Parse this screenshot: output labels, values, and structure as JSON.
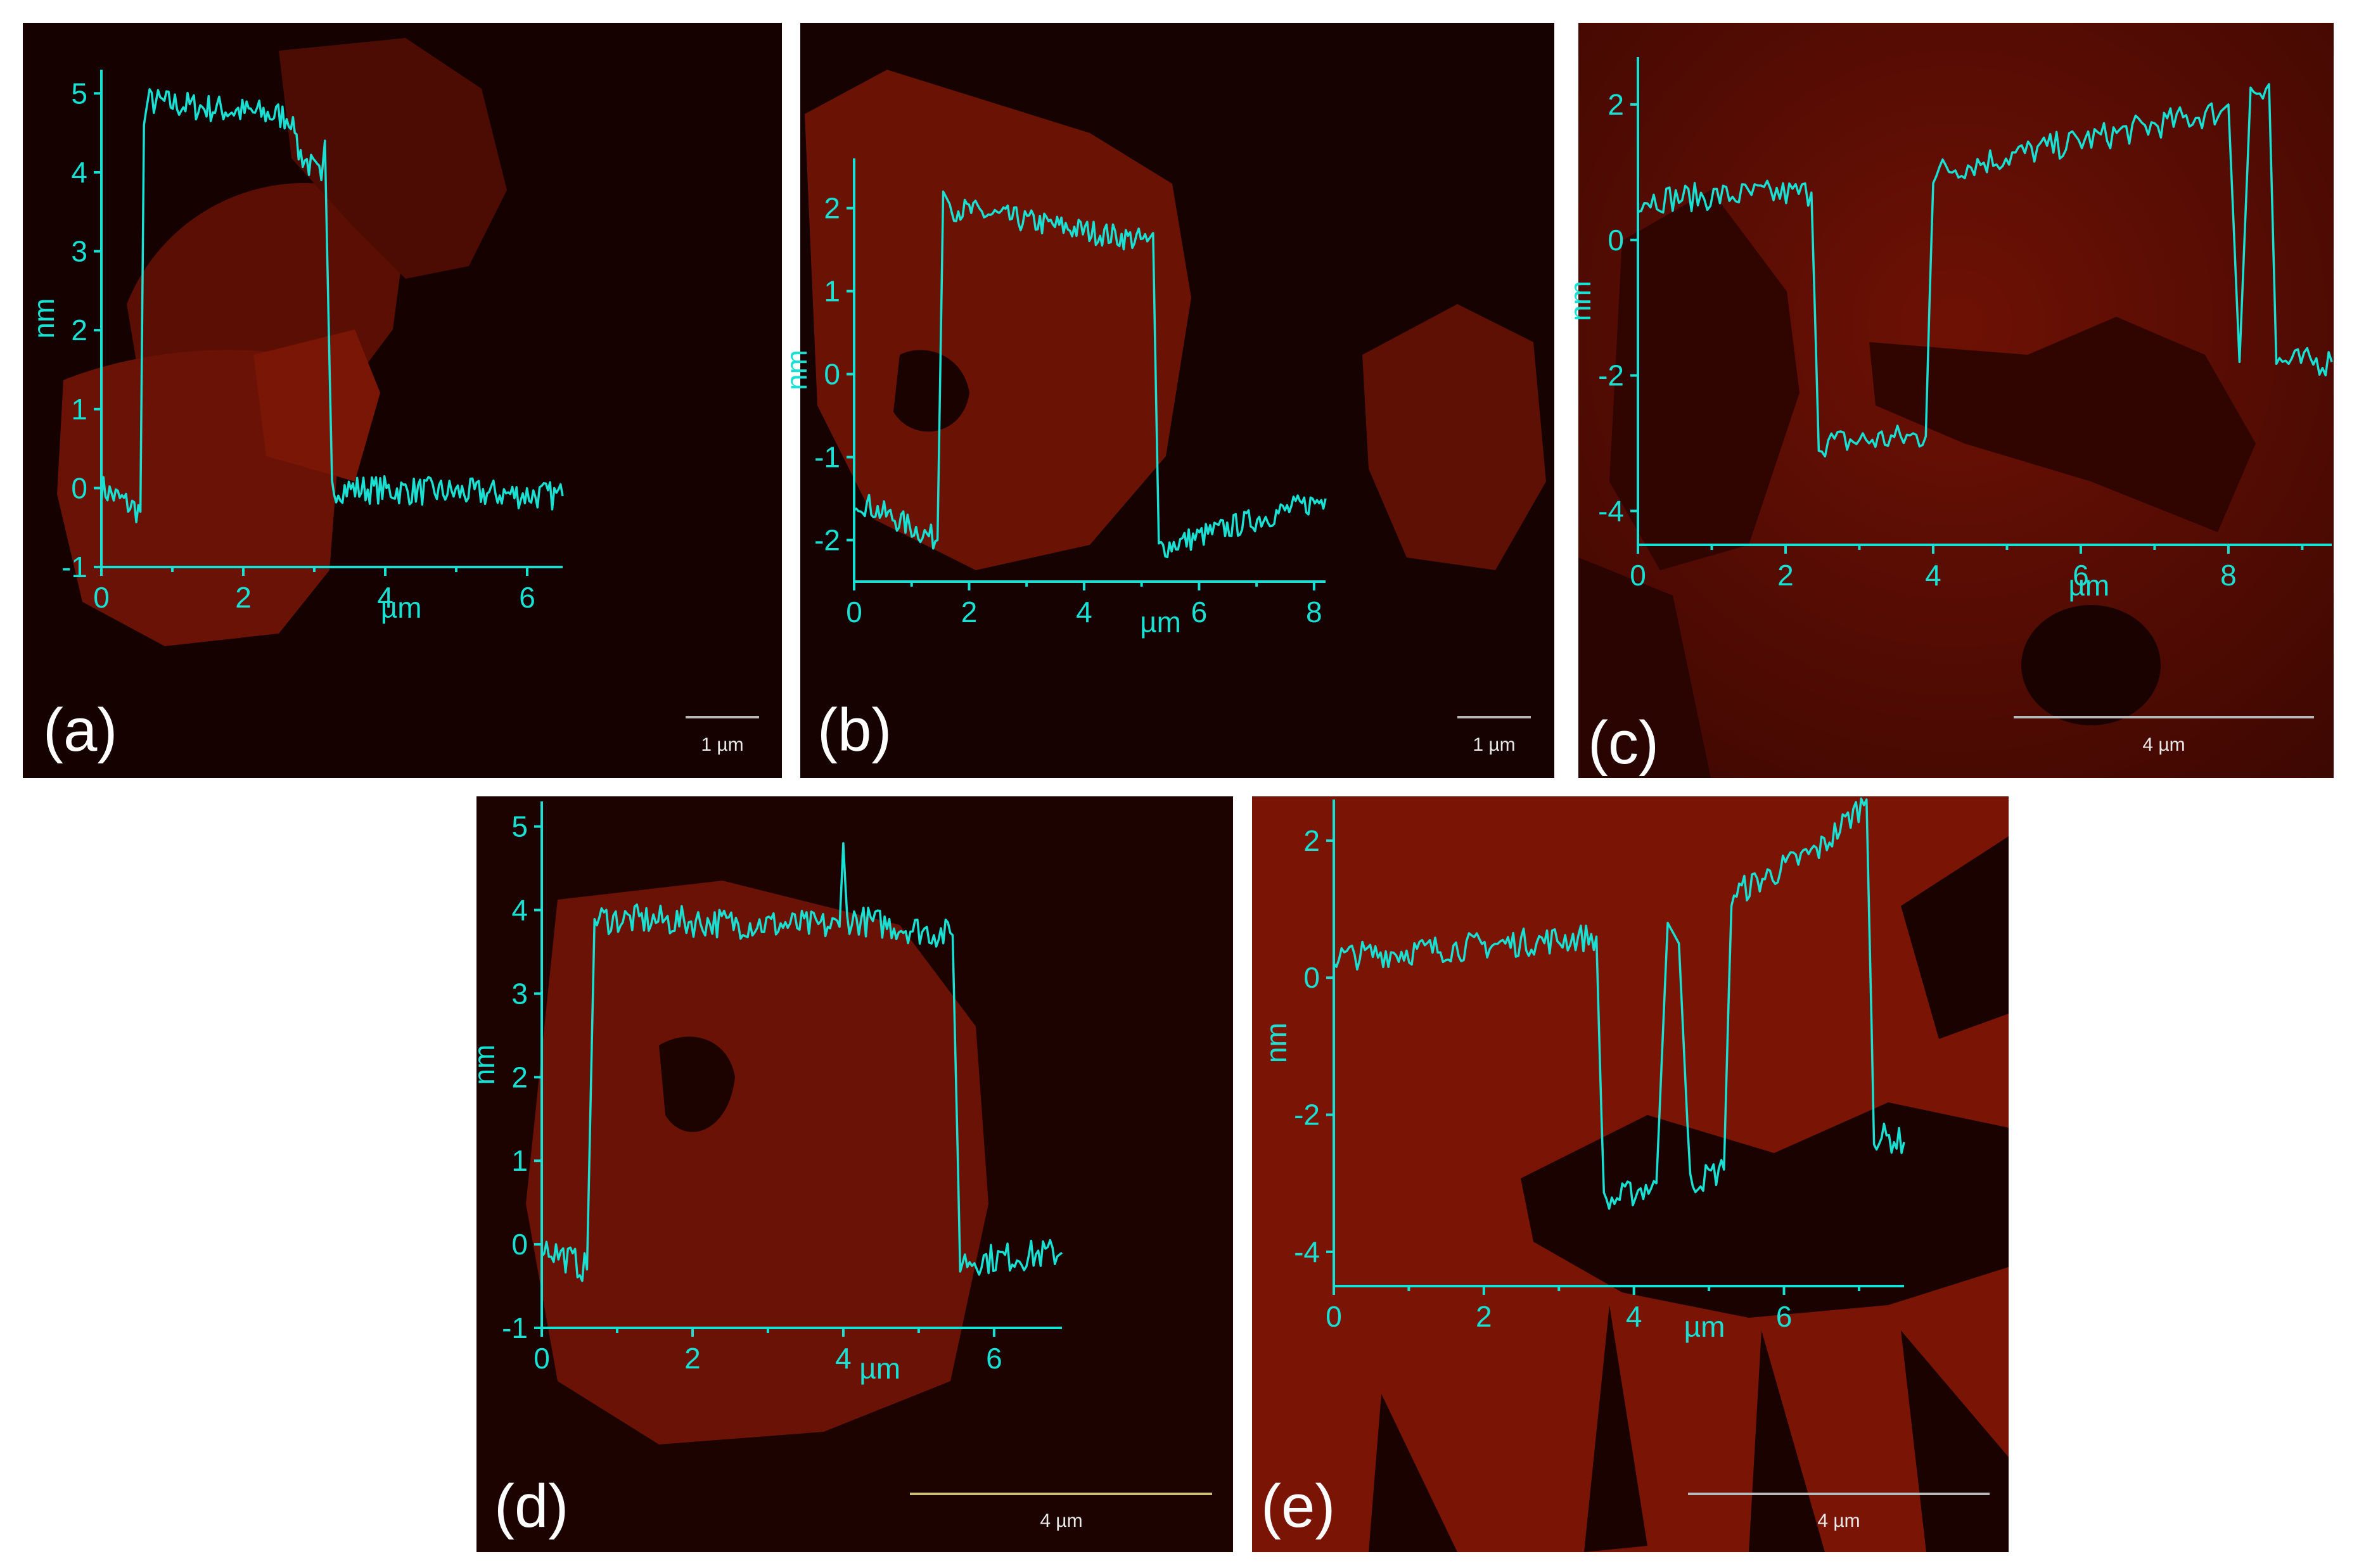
{
  "chart_data": [
    {
      "type": "line",
      "panel_label": "(a)",
      "xlabel": "µm",
      "ylabel": "nm",
      "xlim": [
        0,
        6.5
      ],
      "ylim": [
        -1,
        5.3
      ],
      "xticks": [
        0,
        2,
        4,
        6
      ],
      "yticks": [
        -1,
        0,
        1,
        2,
        3,
        4,
        5
      ],
      "scale_bar": "1 µm",
      "series": [
        {
          "x": [
            0,
            0.55,
            0.6,
            0.65,
            2.7,
            2.75,
            3.1,
            3.15,
            3.25,
            6.5
          ],
          "y": [
            0,
            -0.3,
            4.6,
            4.9,
            4.7,
            4.3,
            3.9,
            4.4,
            0,
            -0.1
          ]
        }
      ]
    },
    {
      "type": "line",
      "panel_label": "(b)",
      "xlabel": "µm",
      "ylabel": "nm",
      "xlim": [
        0,
        8.2
      ],
      "ylim": [
        -2.5,
        2.6
      ],
      "xticks": [
        0,
        2,
        4,
        6,
        8
      ],
      "yticks": [
        -2,
        -1,
        0,
        1,
        2
      ],
      "scale_bar": "1 µm",
      "series": [
        {
          "x": [
            0,
            1.45,
            1.55,
            1.7,
            5.1,
            5.2,
            5.3,
            8.2
          ],
          "y": [
            -1.5,
            -2.0,
            2.2,
            2.0,
            1.6,
            1.7,
            -2.1,
            -1.5
          ]
        }
      ]
    },
    {
      "type": "line",
      "panel_label": "(c)",
      "xlabel": "µm",
      "ylabel": "nm",
      "xlim": [
        0,
        9.4
      ],
      "ylim": [
        -4.5,
        2.7
      ],
      "xticks": [
        0,
        2,
        4,
        6,
        8
      ],
      "yticks": [
        -4,
        -2,
        0,
        2
      ],
      "scale_bar": "4 µm",
      "series": [
        {
          "x": [
            0,
            2.35,
            2.45,
            3.9,
            4.0,
            7.9,
            8.0,
            8.15,
            8.3,
            8.55,
            8.65,
            9.4
          ],
          "y": [
            0.6,
            0.7,
            -3.0,
            -2.9,
            1.0,
            1.9,
            2.0,
            -1.8,
            2.2,
            2.3,
            -1.8,
            -1.8
          ]
        }
      ]
    },
    {
      "type": "line",
      "panel_label": "(d)",
      "xlabel": "µm",
      "ylabel": "nm",
      "xlim": [
        0,
        6.9
      ],
      "ylim": [
        -1,
        5.3
      ],
      "xticks": [
        0,
        2,
        4,
        6
      ],
      "yticks": [
        -1,
        0,
        1,
        2,
        3,
        4,
        5
      ],
      "scale_bar": "4 µm",
      "series": [
        {
          "x": [
            0,
            0.6,
            0.7,
            3.95,
            4.0,
            4.05,
            5.45,
            5.55,
            6.9
          ],
          "y": [
            0,
            -0.3,
            3.9,
            3.8,
            4.8,
            3.9,
            3.7,
            -0.2,
            -0.1
          ]
        }
      ]
    },
    {
      "type": "line",
      "panel_label": "(e)",
      "xlabel": "µm",
      "ylabel": "nm",
      "xlim": [
        0,
        7.6
      ],
      "ylim": [
        -4.5,
        2.6
      ],
      "xticks": [
        0,
        2,
        4,
        6
      ],
      "yticks": [
        -4,
        -2,
        0,
        2
      ],
      "scale_bar": "4 µm",
      "series": [
        {
          "x": [
            0,
            3.5,
            3.6,
            4.3,
            4.45,
            4.6,
            4.75,
            5.2,
            5.3,
            6.5,
            7.1,
            7.2,
            7.6
          ],
          "y": [
            0.3,
            0.6,
            -3.3,
            -3.0,
            0.8,
            0.5,
            -3.0,
            -2.8,
            1.2,
            1.9,
            2.6,
            -2.3,
            -2.4
          ]
        }
      ]
    }
  ],
  "colors": {
    "trace": "#19e0d2",
    "substrate": "#4a0a02",
    "flake": "#8a1c08",
    "label": "#ffffff"
  }
}
